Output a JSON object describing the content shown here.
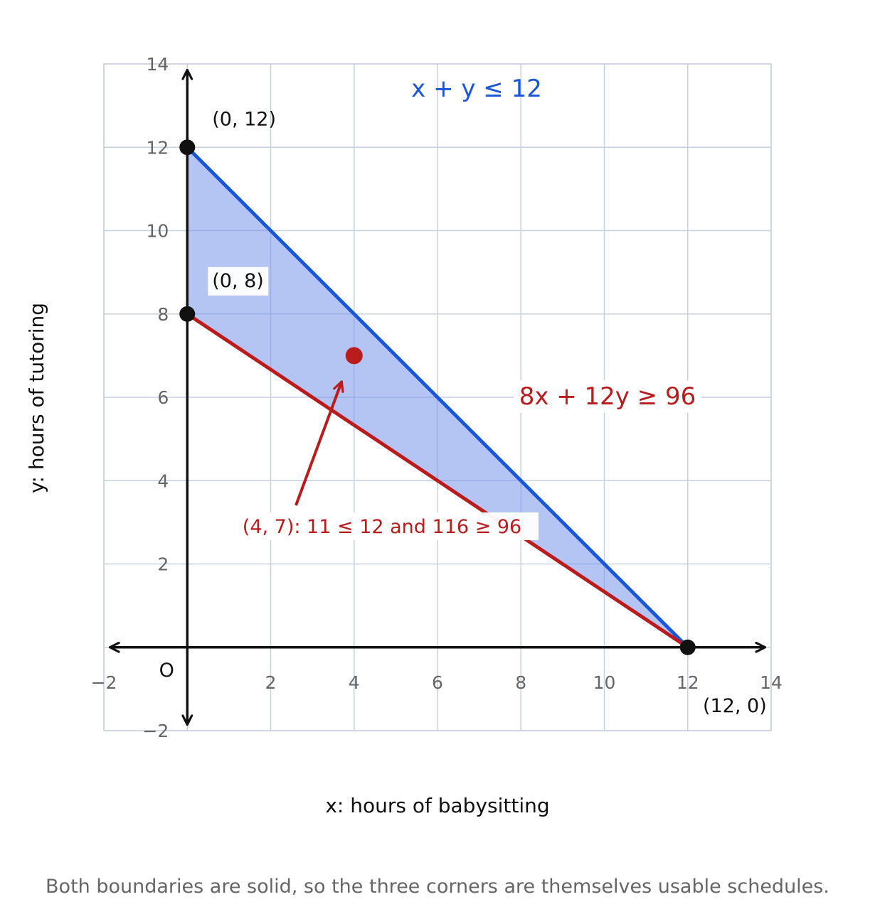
{
  "chart_data": {
    "type": "area",
    "xlabel": "x: hours of babysitting",
    "ylabel": "y: hours of tutoring",
    "xlim": [
      -2,
      14
    ],
    "ylim": [
      -2,
      14
    ],
    "xticks": [
      -2,
      2,
      4,
      6,
      8,
      10,
      12,
      14
    ],
    "yticks": [
      -2,
      2,
      4,
      6,
      8,
      10,
      12,
      14
    ],
    "xtick_labels": [
      "−2",
      "2",
      "4",
      "6",
      "8",
      "10",
      "12",
      "14"
    ],
    "ytick_labels": [
      "−2",
      "2",
      "4",
      "6",
      "8",
      "10",
      "12",
      "14"
    ],
    "grid": true,
    "origin_label": "O",
    "lines": [
      {
        "label": "x + y ≤ 12",
        "color": "#1a56db",
        "points": [
          [
            0,
            12
          ],
          [
            12,
            0
          ]
        ]
      },
      {
        "label": "8x + 12y ≥ 96",
        "color": "#b91c1c",
        "points": [
          [
            0,
            8
          ],
          [
            12,
            0
          ]
        ]
      }
    ],
    "feasible_region": {
      "color": "#6f8fe8",
      "vertices": [
        [
          0,
          12
        ],
        [
          0,
          8
        ],
        [
          12,
          0
        ]
      ]
    },
    "vertices": [
      {
        "x": 0,
        "y": 12,
        "label": "(0, 12)"
      },
      {
        "x": 0,
        "y": 8,
        "label": "(0, 8)"
      },
      {
        "x": 12,
        "y": 0,
        "label": "(12, 0)"
      }
    ],
    "test_point": {
      "x": 4,
      "y": 7,
      "color": "#b91c1c",
      "annotation": "(4, 7):  11 ≤ 12  and  116 ≥ 96"
    }
  },
  "caption": "Both boundaries are solid, so the three corners are themselves usable schedules."
}
